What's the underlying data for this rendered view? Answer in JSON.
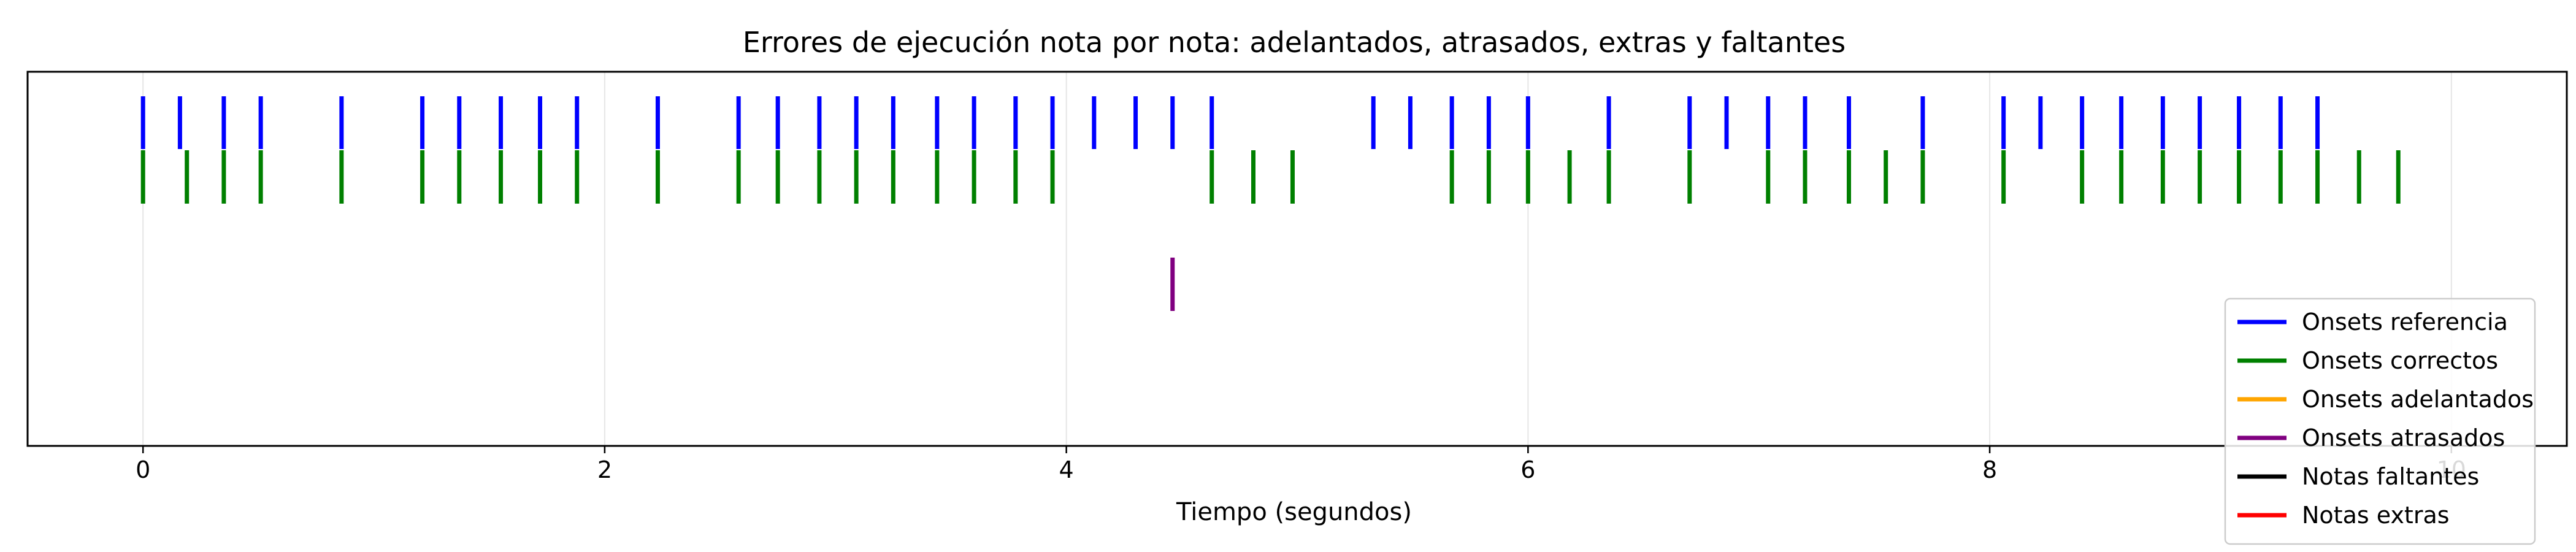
{
  "chart_data": {
    "type": "event",
    "title": "Errores de ejecución nota por nota: adelantados, atrasados, extras y faltantes",
    "xlabel": "Tiempo (segundos)",
    "ylabel": "",
    "xlim": [
      -0.5,
      10.5
    ],
    "xticks": [
      0,
      2,
      4,
      6,
      8,
      10
    ],
    "xtick_labels": [
      "0",
      "2",
      "4",
      "6",
      "8",
      "10"
    ],
    "grid": true,
    "legend_position": "lower-right",
    "series": [
      {
        "name": "Onsets referencia",
        "color": "#0000ff",
        "values": [
          0.0,
          0.16,
          0.35,
          0.51,
          0.86,
          1.21,
          1.37,
          1.55,
          1.72,
          1.88,
          2.23,
          2.58,
          2.75,
          2.93,
          3.09,
          3.25,
          3.44,
          3.6,
          3.78,
          3.94,
          4.12,
          4.3,
          4.46,
          4.63,
          5.33,
          5.49,
          5.67,
          5.83,
          6.0,
          6.35,
          6.7,
          6.86,
          7.04,
          7.2,
          7.39,
          7.71,
          8.06,
          8.22,
          8.4,
          8.57,
          8.75,
          8.91,
          9.08,
          9.26,
          9.42
        ]
      },
      {
        "name": "Onsets correctos",
        "color": "#008000",
        "values": [
          0.0,
          0.19,
          0.35,
          0.51,
          0.86,
          1.21,
          1.37,
          1.55,
          1.72,
          1.88,
          2.23,
          2.58,
          2.75,
          2.93,
          3.09,
          3.25,
          3.44,
          3.6,
          3.78,
          3.94,
          4.63,
          4.81,
          4.98,
          5.67,
          5.83,
          6.0,
          6.18,
          6.35,
          6.7,
          7.04,
          7.2,
          7.39,
          7.55,
          7.71,
          8.06,
          8.4,
          8.57,
          8.75,
          8.91,
          9.08,
          9.26,
          9.42,
          9.6,
          9.77
        ]
      },
      {
        "name": "Onsets adelantados",
        "color": "#ffa500",
        "values": []
      },
      {
        "name": "Onsets atrasados",
        "color": "#800080",
        "values": [
          4.46
        ]
      },
      {
        "name": "Notas faltantes",
        "color": "#000000",
        "values": []
      },
      {
        "name": "Notas extras",
        "color": "#ff0000",
        "values": []
      }
    ]
  }
}
